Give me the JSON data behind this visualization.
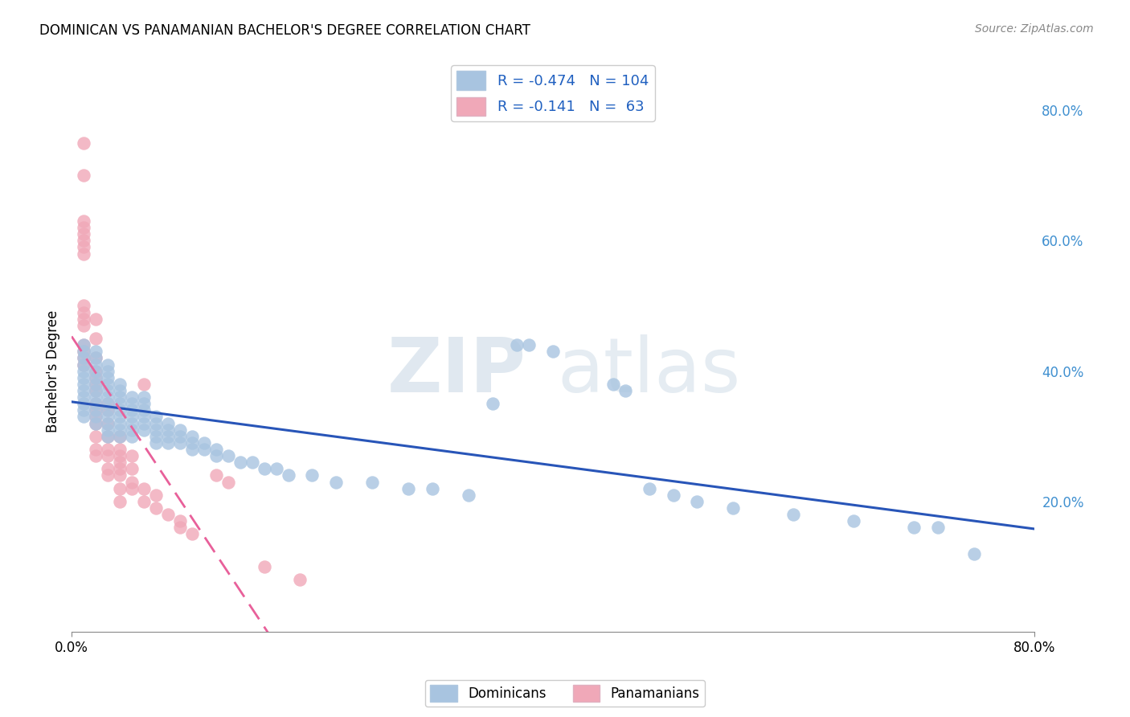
{
  "title": "DOMINICAN VS PANAMANIAN BACHELOR'S DEGREE CORRELATION CHART",
  "source": "Source: ZipAtlas.com",
  "ylabel": "Bachelor's Degree",
  "r_dominican": -0.474,
  "n_dominican": 104,
  "r_panamanian": -0.141,
  "n_panamanian": 63,
  "dominican_color": "#a8c4e0",
  "panamanian_color": "#f0a8b8",
  "dominican_line_color": "#2855b8",
  "panamanian_line_color": "#e8609a",
  "background_color": "#ffffff",
  "grid_color": "#c8d8e8",
  "legend_color": "#2060c0",
  "right_axis_color": "#4090d0",
  "xlim": [
    0.0,
    0.8
  ],
  "ylim": [
    0.0,
    0.8
  ],
  "yticks": [
    0.2,
    0.4,
    0.6,
    0.8
  ],
  "xticks": [
    0.0,
    0.8
  ],
  "dominican_scatter": [
    [
      0.01,
      0.44
    ],
    [
      0.01,
      0.43
    ],
    [
      0.01,
      0.42
    ],
    [
      0.01,
      0.41
    ],
    [
      0.01,
      0.4
    ],
    [
      0.01,
      0.39
    ],
    [
      0.01,
      0.38
    ],
    [
      0.01,
      0.37
    ],
    [
      0.01,
      0.36
    ],
    [
      0.01,
      0.35
    ],
    [
      0.01,
      0.34
    ],
    [
      0.01,
      0.33
    ],
    [
      0.02,
      0.43
    ],
    [
      0.02,
      0.42
    ],
    [
      0.02,
      0.41
    ],
    [
      0.02,
      0.4
    ],
    [
      0.02,
      0.39
    ],
    [
      0.02,
      0.38
    ],
    [
      0.02,
      0.37
    ],
    [
      0.02,
      0.36
    ],
    [
      0.02,
      0.35
    ],
    [
      0.02,
      0.34
    ],
    [
      0.02,
      0.33
    ],
    [
      0.02,
      0.32
    ],
    [
      0.03,
      0.41
    ],
    [
      0.03,
      0.4
    ],
    [
      0.03,
      0.39
    ],
    [
      0.03,
      0.38
    ],
    [
      0.03,
      0.37
    ],
    [
      0.03,
      0.36
    ],
    [
      0.03,
      0.35
    ],
    [
      0.03,
      0.34
    ],
    [
      0.03,
      0.33
    ],
    [
      0.03,
      0.32
    ],
    [
      0.03,
      0.31
    ],
    [
      0.03,
      0.3
    ],
    [
      0.04,
      0.38
    ],
    [
      0.04,
      0.37
    ],
    [
      0.04,
      0.36
    ],
    [
      0.04,
      0.35
    ],
    [
      0.04,
      0.34
    ],
    [
      0.04,
      0.33
    ],
    [
      0.04,
      0.32
    ],
    [
      0.04,
      0.31
    ],
    [
      0.04,
      0.3
    ],
    [
      0.05,
      0.36
    ],
    [
      0.05,
      0.35
    ],
    [
      0.05,
      0.34
    ],
    [
      0.05,
      0.33
    ],
    [
      0.05,
      0.32
    ],
    [
      0.05,
      0.31
    ],
    [
      0.05,
      0.3
    ],
    [
      0.06,
      0.36
    ],
    [
      0.06,
      0.35
    ],
    [
      0.06,
      0.34
    ],
    [
      0.06,
      0.33
    ],
    [
      0.06,
      0.32
    ],
    [
      0.06,
      0.31
    ],
    [
      0.07,
      0.33
    ],
    [
      0.07,
      0.32
    ],
    [
      0.07,
      0.31
    ],
    [
      0.07,
      0.3
    ],
    [
      0.07,
      0.29
    ],
    [
      0.08,
      0.32
    ],
    [
      0.08,
      0.31
    ],
    [
      0.08,
      0.3
    ],
    [
      0.08,
      0.29
    ],
    [
      0.09,
      0.31
    ],
    [
      0.09,
      0.3
    ],
    [
      0.09,
      0.29
    ],
    [
      0.1,
      0.3
    ],
    [
      0.1,
      0.29
    ],
    [
      0.1,
      0.28
    ],
    [
      0.11,
      0.29
    ],
    [
      0.11,
      0.28
    ],
    [
      0.12,
      0.28
    ],
    [
      0.12,
      0.27
    ],
    [
      0.13,
      0.27
    ],
    [
      0.14,
      0.26
    ],
    [
      0.15,
      0.26
    ],
    [
      0.16,
      0.25
    ],
    [
      0.17,
      0.25
    ],
    [
      0.18,
      0.24
    ],
    [
      0.2,
      0.24
    ],
    [
      0.22,
      0.23
    ],
    [
      0.25,
      0.23
    ],
    [
      0.28,
      0.22
    ],
    [
      0.3,
      0.22
    ],
    [
      0.33,
      0.21
    ],
    [
      0.35,
      0.35
    ],
    [
      0.37,
      0.44
    ],
    [
      0.38,
      0.44
    ],
    [
      0.4,
      0.43
    ],
    [
      0.45,
      0.38
    ],
    [
      0.46,
      0.37
    ],
    [
      0.48,
      0.22
    ],
    [
      0.5,
      0.21
    ],
    [
      0.52,
      0.2
    ],
    [
      0.55,
      0.19
    ],
    [
      0.6,
      0.18
    ],
    [
      0.65,
      0.17
    ],
    [
      0.7,
      0.16
    ],
    [
      0.72,
      0.16
    ],
    [
      0.75,
      0.12
    ]
  ],
  "panamanian_scatter": [
    [
      0.01,
      0.75
    ],
    [
      0.01,
      0.7
    ],
    [
      0.01,
      0.63
    ],
    [
      0.01,
      0.62
    ],
    [
      0.01,
      0.61
    ],
    [
      0.01,
      0.6
    ],
    [
      0.01,
      0.59
    ],
    [
      0.01,
      0.58
    ],
    [
      0.01,
      0.5
    ],
    [
      0.01,
      0.49
    ],
    [
      0.01,
      0.48
    ],
    [
      0.01,
      0.47
    ],
    [
      0.01,
      0.44
    ],
    [
      0.01,
      0.43
    ],
    [
      0.01,
      0.42
    ],
    [
      0.01,
      0.41
    ],
    [
      0.02,
      0.48
    ],
    [
      0.02,
      0.45
    ],
    [
      0.02,
      0.42
    ],
    [
      0.02,
      0.4
    ],
    [
      0.02,
      0.39
    ],
    [
      0.02,
      0.38
    ],
    [
      0.02,
      0.37
    ],
    [
      0.02,
      0.35
    ],
    [
      0.02,
      0.34
    ],
    [
      0.02,
      0.33
    ],
    [
      0.02,
      0.32
    ],
    [
      0.02,
      0.3
    ],
    [
      0.02,
      0.28
    ],
    [
      0.02,
      0.27
    ],
    [
      0.03,
      0.35
    ],
    [
      0.03,
      0.34
    ],
    [
      0.03,
      0.32
    ],
    [
      0.03,
      0.3
    ],
    [
      0.03,
      0.28
    ],
    [
      0.03,
      0.27
    ],
    [
      0.03,
      0.25
    ],
    [
      0.03,
      0.24
    ],
    [
      0.04,
      0.3
    ],
    [
      0.04,
      0.28
    ],
    [
      0.04,
      0.27
    ],
    [
      0.04,
      0.26
    ],
    [
      0.04,
      0.25
    ],
    [
      0.04,
      0.24
    ],
    [
      0.04,
      0.22
    ],
    [
      0.04,
      0.2
    ],
    [
      0.05,
      0.27
    ],
    [
      0.05,
      0.25
    ],
    [
      0.05,
      0.23
    ],
    [
      0.05,
      0.22
    ],
    [
      0.06,
      0.38
    ],
    [
      0.06,
      0.22
    ],
    [
      0.06,
      0.2
    ],
    [
      0.07,
      0.21
    ],
    [
      0.07,
      0.19
    ],
    [
      0.08,
      0.18
    ],
    [
      0.09,
      0.17
    ],
    [
      0.09,
      0.16
    ],
    [
      0.1,
      0.15
    ],
    [
      0.12,
      0.24
    ],
    [
      0.13,
      0.23
    ],
    [
      0.16,
      0.1
    ],
    [
      0.19,
      0.08
    ]
  ]
}
